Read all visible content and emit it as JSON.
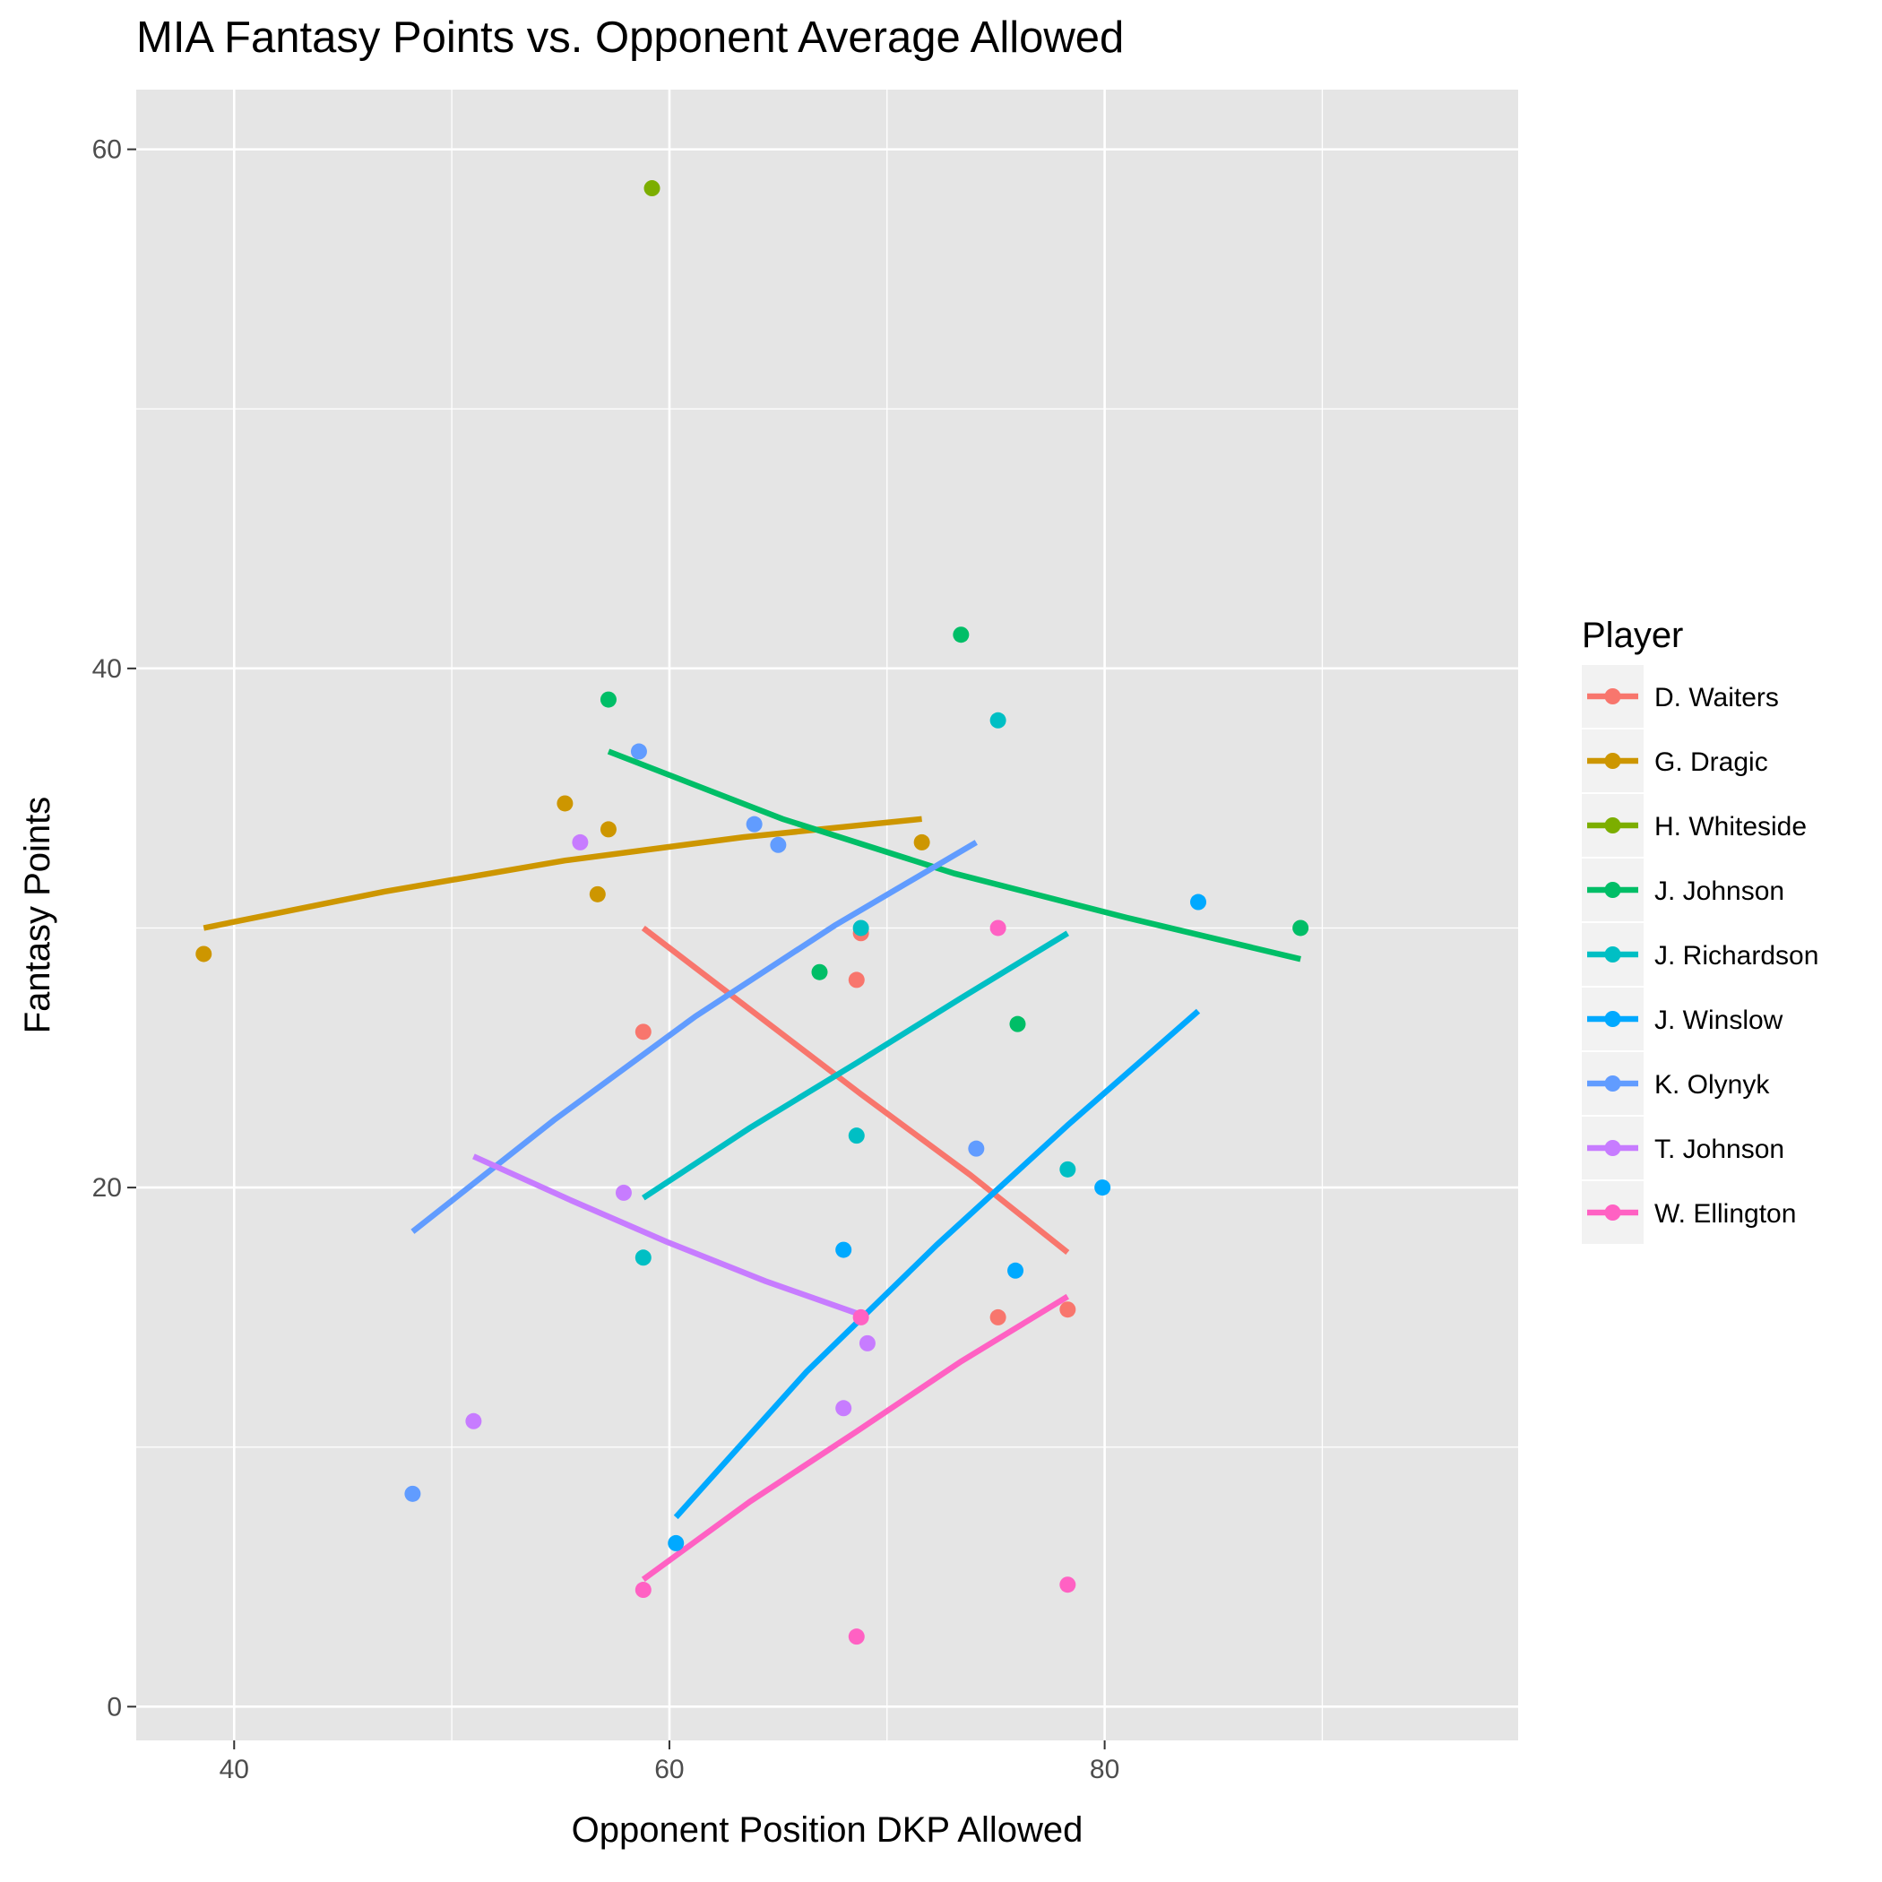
{
  "chart_data": {
    "type": "scatter",
    "title": "MIA Fantasy Points vs. Opponent Average Allowed",
    "xlabel": "Opponent Position DKP Allowed",
    "ylabel": "Fantasy Points",
    "xlim": [
      35.5,
      99
    ],
    "ylim": [
      -1.3,
      62.3
    ],
    "x_ticks": [
      40,
      60,
      80
    ],
    "y_ticks": [
      0,
      20,
      40,
      60
    ],
    "grid": true,
    "legend": {
      "title": "Player",
      "position": "right"
    },
    "series": [
      {
        "name": "D. Waiters",
        "color": "#F8766D",
        "points": [
          [
            58.8,
            26.0
          ],
          [
            68.8,
            29.8
          ],
          [
            68.6,
            28.0
          ],
          [
            75.1,
            15.0
          ],
          [
            78.3,
            15.3
          ]
        ],
        "trend": [
          [
            58.8,
            30.0
          ],
          [
            63.8,
            26.8
          ],
          [
            68.8,
            23.6
          ],
          [
            73.8,
            20.5
          ],
          [
            78.3,
            17.5
          ]
        ]
      },
      {
        "name": "G. Dragic",
        "color": "#CD9600",
        "points": [
          [
            38.6,
            29.0
          ],
          [
            55.2,
            34.8
          ],
          [
            57.2,
            33.8
          ],
          [
            56.7,
            31.3
          ],
          [
            71.6,
            33.3
          ]
        ],
        "trend": [
          [
            38.6,
            30.0
          ],
          [
            46.9,
            31.4
          ],
          [
            55.2,
            32.6
          ],
          [
            63.4,
            33.5
          ],
          [
            71.6,
            34.2
          ]
        ]
      },
      {
        "name": "H. Whiteside",
        "color": "#7CAE00",
        "points": [
          [
            59.2,
            58.5
          ]
        ],
        "trend": []
      },
      {
        "name": "J. Johnson",
        "color": "#00BE67",
        "points": [
          [
            57.2,
            38.8
          ],
          [
            66.9,
            28.3
          ],
          [
            73.4,
            41.3
          ],
          [
            76.0,
            26.3
          ],
          [
            89.0,
            30.0
          ]
        ],
        "trend": [
          [
            57.2,
            36.8
          ],
          [
            65.2,
            34.2
          ],
          [
            73.1,
            32.1
          ],
          [
            81.0,
            30.4
          ],
          [
            89.0,
            28.8
          ]
        ]
      },
      {
        "name": "J. Richardson",
        "color": "#00BFC4",
        "points": [
          [
            58.8,
            17.3
          ],
          [
            68.8,
            30.0
          ],
          [
            68.6,
            22.0
          ],
          [
            75.1,
            38.0
          ],
          [
            78.3,
            20.7
          ]
        ],
        "trend": [
          [
            58.8,
            19.6
          ],
          [
            63.7,
            22.3
          ],
          [
            68.6,
            24.8
          ],
          [
            73.4,
            27.3
          ],
          [
            78.3,
            29.8
          ]
        ]
      },
      {
        "name": "J. Winslow",
        "color": "#00A9FF",
        "points": [
          [
            60.3,
            6.3
          ],
          [
            68.0,
            17.6
          ],
          [
            75.9,
            16.8
          ],
          [
            79.9,
            20.0
          ],
          [
            84.3,
            31.0
          ]
        ],
        "trend": [
          [
            60.3,
            7.3
          ],
          [
            66.3,
            12.9
          ],
          [
            72.3,
            17.8
          ],
          [
            78.3,
            22.4
          ],
          [
            84.3,
            26.8
          ]
        ]
      },
      {
        "name": "K. Olynyk",
        "color": "#619CFF",
        "points": [
          [
            48.2,
            8.2
          ],
          [
            58.6,
            36.8
          ],
          [
            63.9,
            34.0
          ],
          [
            65.0,
            33.2
          ],
          [
            74.1,
            21.5
          ]
        ],
        "trend": [
          [
            48.2,
            18.3
          ],
          [
            54.7,
            22.6
          ],
          [
            61.2,
            26.6
          ],
          [
            67.6,
            30.1
          ],
          [
            74.1,
            33.3
          ]
        ]
      },
      {
        "name": "T. Johnson",
        "color": "#C77CFF",
        "points": [
          [
            51.0,
            11.0
          ],
          [
            55.9,
            33.3
          ],
          [
            57.9,
            19.8
          ],
          [
            68.0,
            11.5
          ],
          [
            69.1,
            14.0
          ]
        ],
        "trend": [
          [
            51.0,
            21.2
          ],
          [
            55.5,
            19.5
          ],
          [
            59.9,
            17.9
          ],
          [
            64.4,
            16.4
          ],
          [
            68.8,
            15.1
          ]
        ]
      },
      {
        "name": "W. Ellington",
        "color": "#FF61C3",
        "points": [
          [
            58.8,
            4.5
          ],
          [
            68.6,
            2.7
          ],
          [
            68.8,
            15.0
          ],
          [
            75.1,
            30.0
          ],
          [
            78.3,
            4.7
          ]
        ],
        "trend": [
          [
            58.8,
            4.9
          ],
          [
            63.7,
            7.9
          ],
          [
            68.6,
            10.6
          ],
          [
            73.4,
            13.3
          ],
          [
            78.3,
            15.8
          ]
        ]
      }
    ]
  }
}
